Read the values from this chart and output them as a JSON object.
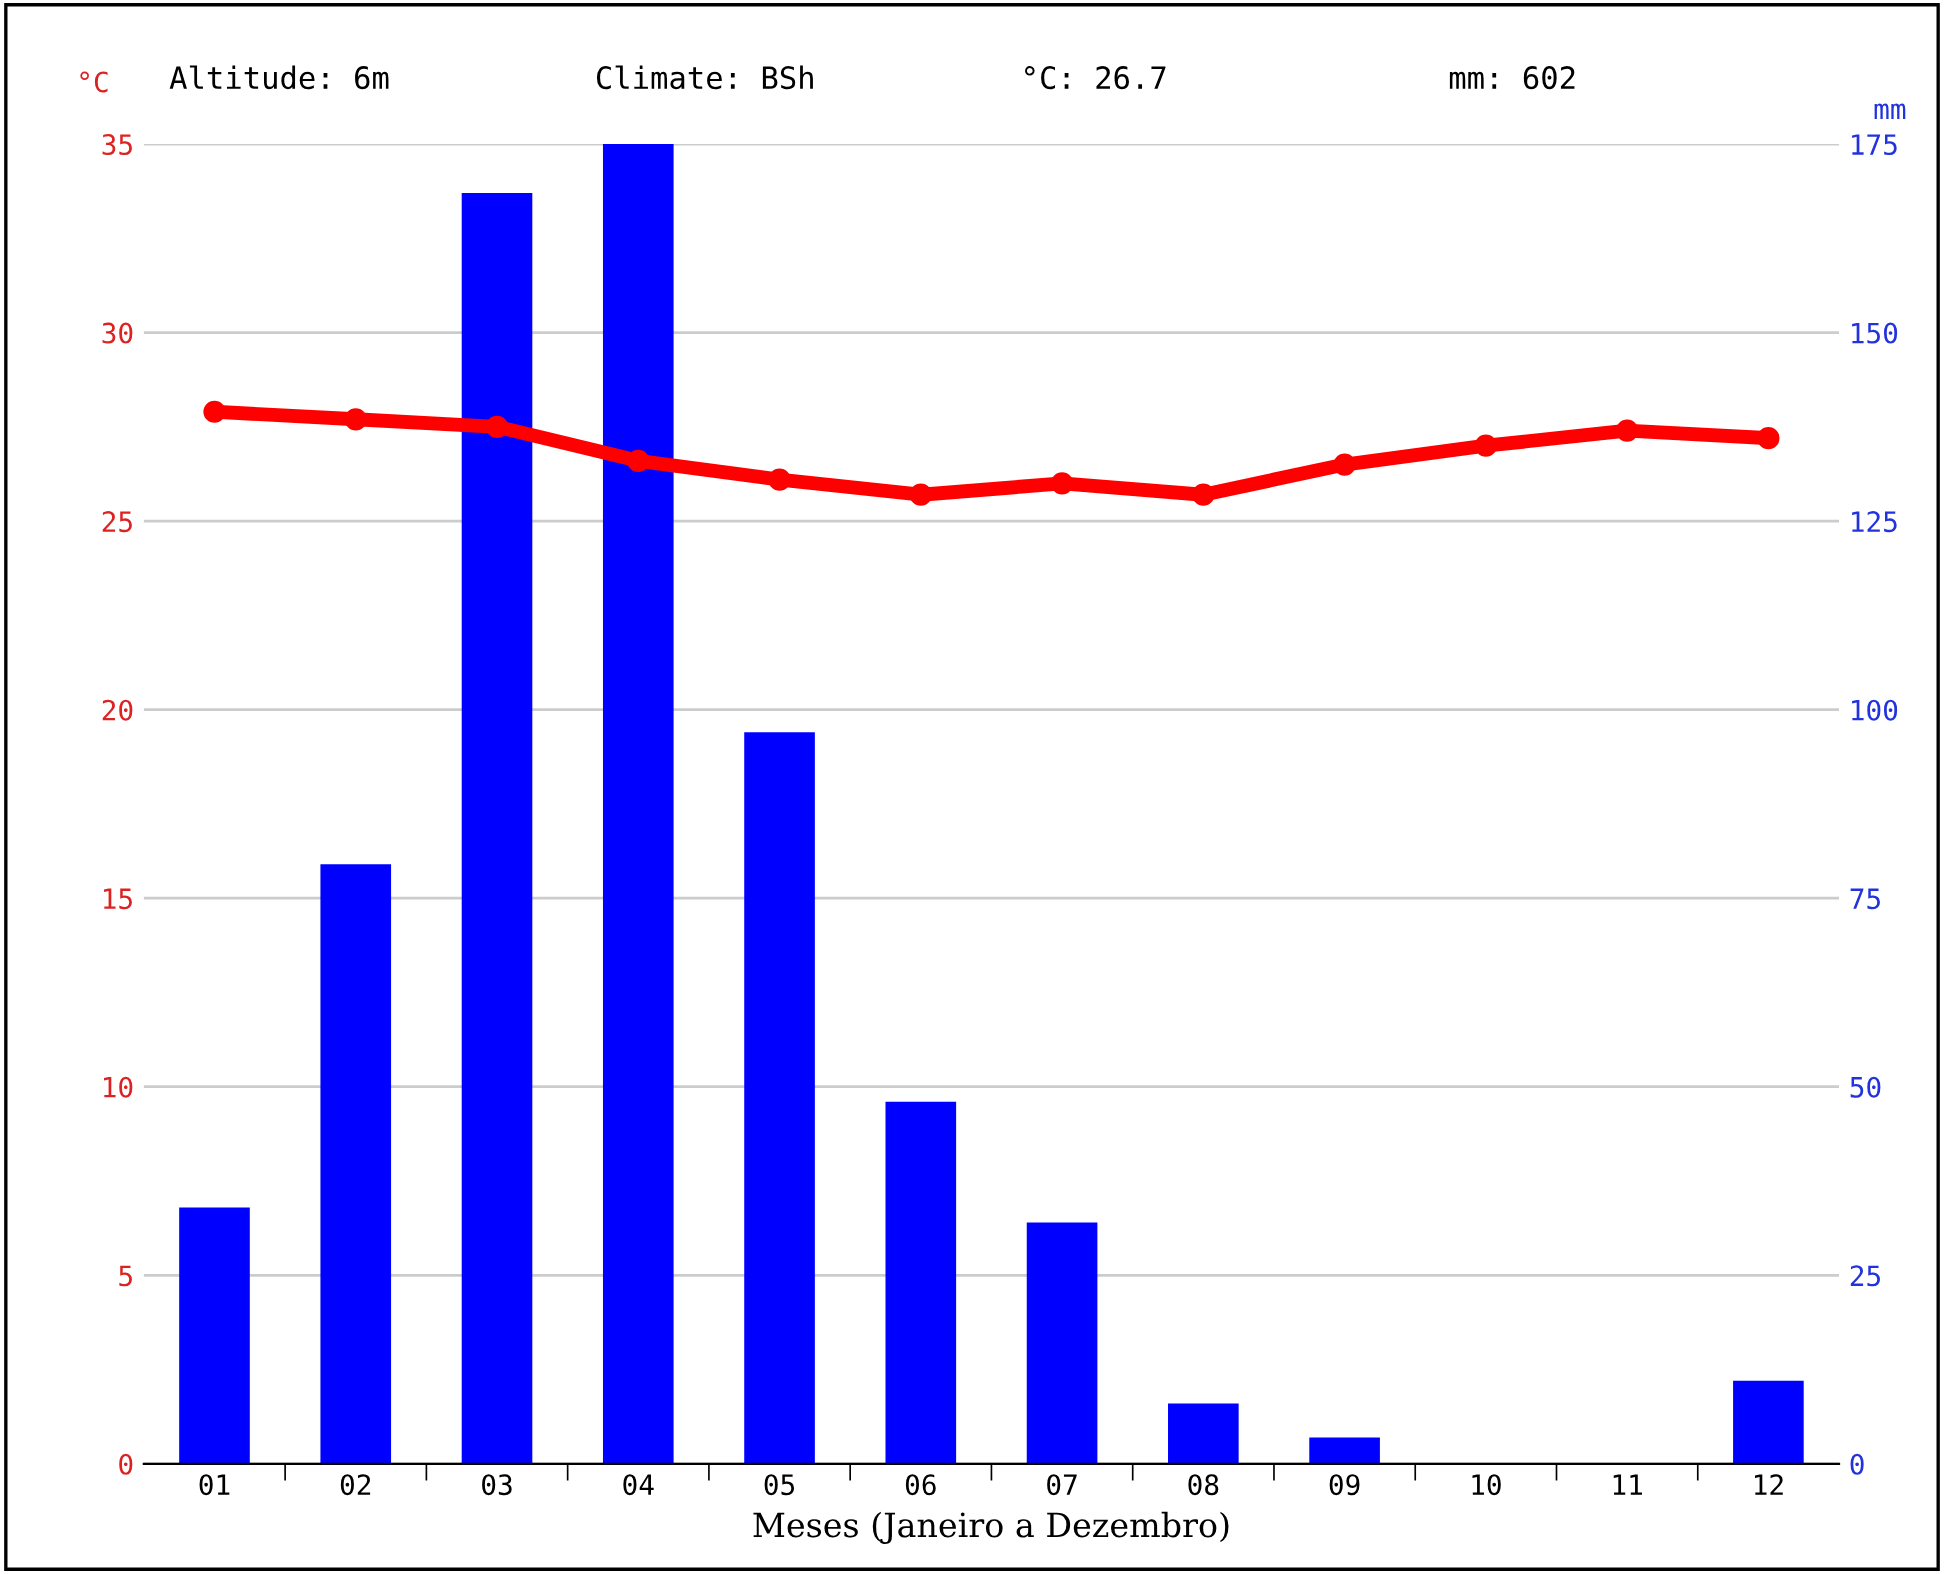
{
  "chart_data": {
    "type": "bar",
    "categories": [
      "01",
      "02",
      "03",
      "04",
      "05",
      "06",
      "07",
      "08",
      "09",
      "10",
      "11",
      "12"
    ],
    "series": [
      {
        "axis": "y2",
        "color": "#0000ff",
        "values": [
          34,
          79.5,
          168.5,
          175,
          97,
          48,
          32,
          8,
          3.5,
          0,
          0,
          11
        ]
      },
      {
        "type": "line",
        "axis": "y",
        "color": "#ff0000",
        "marker": "circle",
        "line_style": "solid",
        "values": [
          27.9,
          27.7,
          27.5,
          26.6,
          26.1,
          25.7,
          26.0,
          25.7,
          26.5,
          27.0,
          27.4,
          27.2
        ]
      }
    ],
    "ylabel": "°C",
    "y2label": "mm",
    "xlabel": "Meses (Janeiro a Dezembro)",
    "ylim": [
      0,
      35
    ],
    "yticks": [
      0,
      5,
      10,
      15,
      20,
      25,
      30,
      35
    ],
    "y2lim": [
      0,
      175
    ],
    "y2ticks": [
      0,
      25,
      50,
      75,
      100,
      125,
      150,
      175
    ],
    "grid": "y",
    "legend": false,
    "annotations": [
      "Altitude: 6m",
      "Climate: BSh",
      "°C: 26.7",
      "mm: 602"
    ]
  }
}
